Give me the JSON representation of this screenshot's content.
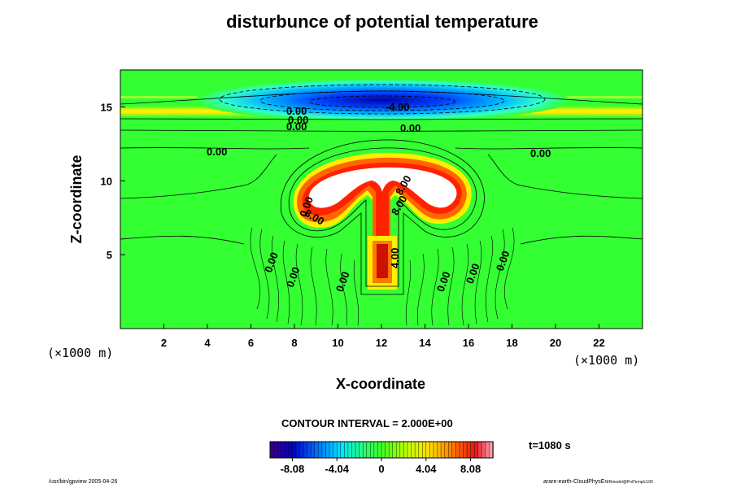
{
  "chart_data": {
    "type": "contour",
    "title": "disturbunce of potential temperature",
    "xlabel": "X-coordinate",
    "ylabel": "Z-coordinate",
    "x_unit": "(×1000 m)",
    "z_unit": "(×1000 m)",
    "x_ticks": [
      2,
      4,
      6,
      8,
      10,
      12,
      14,
      16,
      18,
      20,
      22
    ],
    "z_ticks": [
      5,
      10,
      15
    ],
    "xlim": [
      0,
      24
    ],
    "zlim": [
      0,
      17.5
    ],
    "contour_interval_label": "CONTOUR INTERVAL = 2.000E+00",
    "contour_labels": [
      "0.00",
      "0.00",
      "0.00",
      "-4.00",
      "0.00",
      "0.00",
      "0.00",
      "0.00",
      "8.00",
      "8.00",
      "8.00",
      "4.00",
      "0.00",
      "0.00",
      "0.00",
      "0.00",
      "0.00",
      "0.00"
    ],
    "colorbar": {
      "ticks": [
        "-8.08",
        "-4.04",
        "0",
        "4.04",
        "8.08"
      ],
      "tick_values": [
        -8.08,
        -4.04,
        0,
        4.04,
        8.08
      ],
      "range": [
        -10.1,
        10.1
      ]
    },
    "time_label": "t=1080 s"
  },
  "footer": {
    "left": "/usr/bin/gpview 2005-04-26",
    "right_main": "arare-earth-CloudPhysE",
    "right_sub": "NIRmodel@PotTemp/c100"
  }
}
